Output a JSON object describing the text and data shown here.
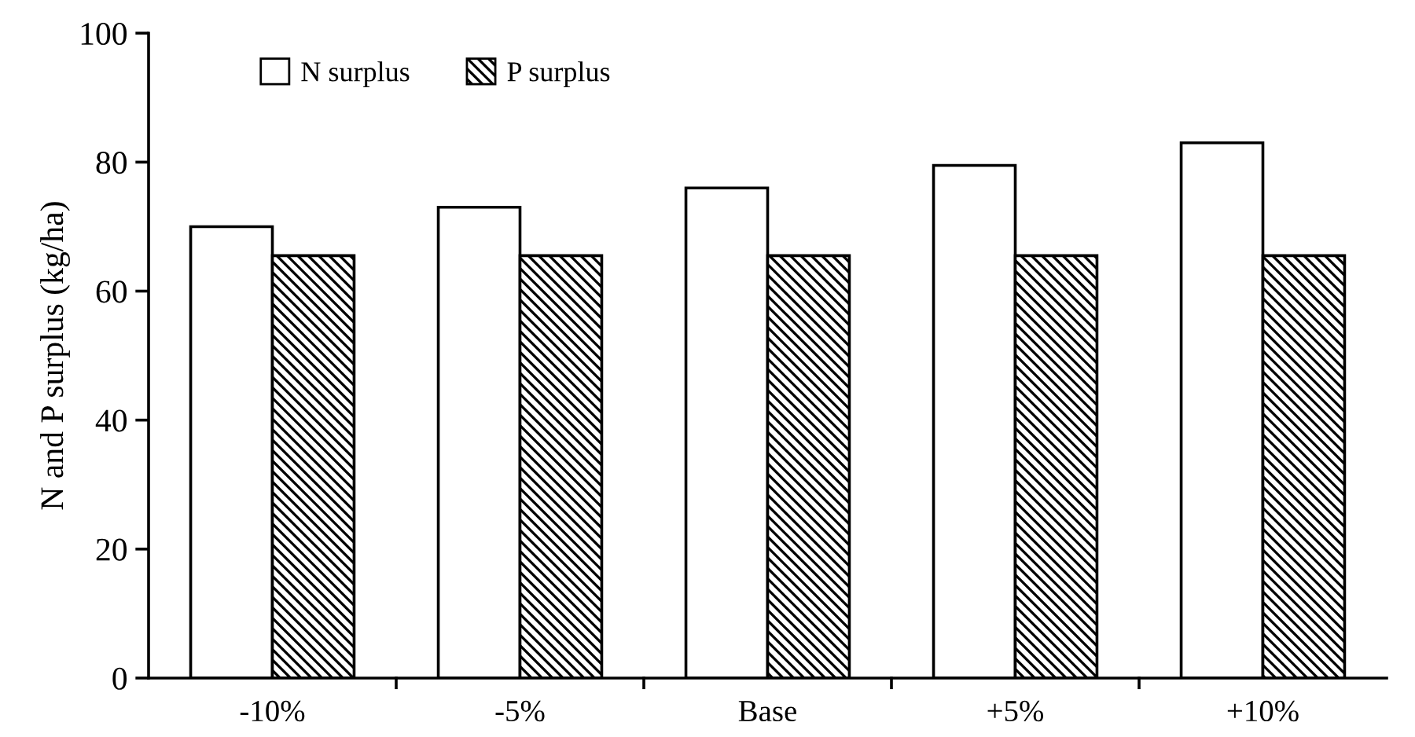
{
  "chart_data": {
    "type": "bar",
    "ylabel": "N and P surplus (kg/ha)",
    "categories": [
      "-10%",
      "-5%",
      "Base",
      "+5%",
      "+10%"
    ],
    "series": [
      {
        "name": "N surplus",
        "color": "#ffffff",
        "values": [
          70,
          73,
          76,
          79.5,
          83
        ]
      },
      {
        "name": "P surplus",
        "color": "#000000",
        "values": [
          65.5,
          65.5,
          65.5,
          65.5,
          65.5
        ]
      }
    ],
    "ylim": [
      0,
      100
    ],
    "yticks": [
      0,
      20,
      40,
      60,
      80,
      100
    ],
    "grid": false,
    "legend": "top left"
  }
}
